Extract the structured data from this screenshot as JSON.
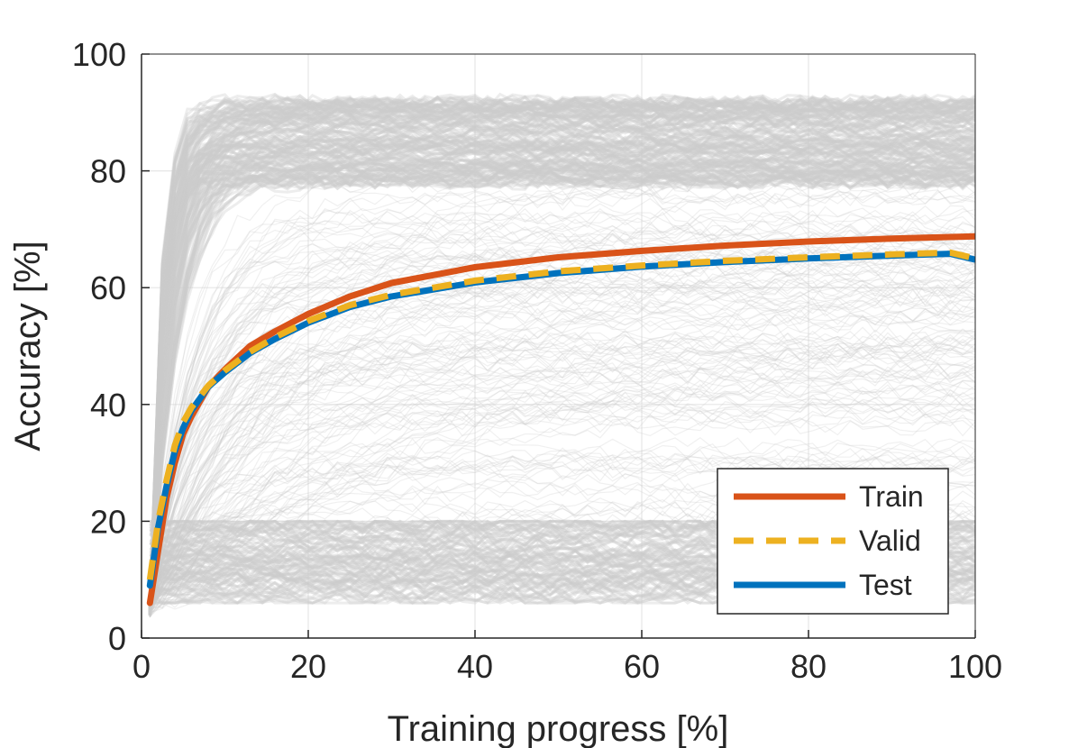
{
  "chart_data": {
    "type": "line",
    "title": "",
    "xlabel": "Training progress [%]",
    "ylabel": "Accuracy [%]",
    "xlim": [
      0,
      100
    ],
    "ylim": [
      0,
      100
    ],
    "xticks": [
      0,
      20,
      40,
      60,
      80,
      100
    ],
    "yticks": [
      0,
      20,
      40,
      60,
      80,
      100
    ],
    "xtick_labels": [
      "0",
      "20",
      "40",
      "60",
      "80",
      "100"
    ],
    "ytick_labels": [
      "0",
      "20",
      "40",
      "60",
      "80",
      "100"
    ],
    "grid": true,
    "legend": {
      "position": "bottom-right",
      "entries": [
        "Train",
        "Valid",
        "Test"
      ]
    },
    "background_runs": {
      "description": "many individual training runs shown as faint gray lines",
      "color": "#cccccc",
      "upper_band": {
        "start_y": 5,
        "plateau_low": 78,
        "plateau_high": 92
      },
      "middle_band": {
        "start_y": 5,
        "plateau_low": 20,
        "plateau_high": 80
      },
      "lower_band": {
        "low": 6,
        "high": 20
      }
    },
    "series": [
      {
        "name": "Train",
        "color": "#d95319",
        "style": "solid",
        "x": [
          1,
          2,
          3,
          4,
          5,
          6,
          8,
          10,
          13,
          16,
          20,
          25,
          30,
          40,
          50,
          60,
          70,
          80,
          90,
          100
        ],
        "y": [
          6,
          15,
          24,
          30,
          35,
          38,
          43,
          46,
          50,
          52.5,
          55.5,
          58.5,
          60.8,
          63.5,
          65.2,
          66.3,
          67.2,
          67.9,
          68.4,
          68.8
        ]
      },
      {
        "name": "Valid",
        "color": "#edb120",
        "style": "dashed",
        "x": [
          1,
          2,
          3,
          4,
          5,
          6,
          8,
          10,
          13,
          16,
          20,
          25,
          30,
          40,
          50,
          60,
          70,
          80,
          90,
          97,
          100
        ],
        "y": [
          10,
          20,
          27,
          33,
          37,
          39.5,
          43.2,
          45.8,
          49,
          51.5,
          54.3,
          57,
          58.8,
          61.2,
          62.8,
          63.8,
          64.6,
          65.2,
          65.7,
          66,
          65
        ]
      },
      {
        "name": "Test",
        "color": "#0072bd",
        "style": "solid",
        "x": [
          1,
          2,
          3,
          4,
          5,
          6,
          8,
          10,
          13,
          16,
          20,
          25,
          30,
          40,
          50,
          60,
          70,
          80,
          90,
          97,
          100
        ],
        "y": [
          9,
          19,
          26,
          32,
          36,
          39,
          43,
          45.5,
          48.8,
          51.2,
          54,
          56.7,
          58.5,
          60.9,
          62.5,
          63.6,
          64.4,
          65,
          65.5,
          65.8,
          64.8
        ]
      }
    ]
  }
}
